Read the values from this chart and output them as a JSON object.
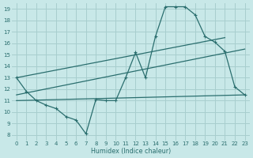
{
  "background_color": "#c8e8e8",
  "grid_color": "#a8cece",
  "line_color": "#2a6e6e",
  "xlabel": "Humidex (Indice chaleur)",
  "xlim": [
    -0.5,
    23.5
  ],
  "ylim": [
    7.5,
    19.5
  ],
  "xticks": [
    0,
    1,
    2,
    3,
    4,
    5,
    6,
    7,
    8,
    9,
    10,
    11,
    12,
    13,
    14,
    15,
    16,
    17,
    18,
    19,
    20,
    21,
    22,
    23
  ],
  "yticks": [
    8,
    9,
    10,
    11,
    12,
    13,
    14,
    15,
    16,
    17,
    18,
    19
  ],
  "main_x": [
    0,
    1,
    2,
    3,
    4,
    5,
    6,
    7,
    8,
    9,
    10,
    11,
    12,
    13,
    14,
    15,
    16,
    17,
    18,
    19,
    20,
    21,
    22,
    23
  ],
  "main_y": [
    13.0,
    11.8,
    11.0,
    10.6,
    10.3,
    9.6,
    9.3,
    8.1,
    11.1,
    11.0,
    11.0,
    13.0,
    15.2,
    13.0,
    16.6,
    19.2,
    19.2,
    19.2,
    18.5,
    16.6,
    16.1,
    15.3,
    12.2,
    11.5
  ],
  "line1_x": [
    0,
    21
  ],
  "line1_y": [
    13.0,
    16.5
  ],
  "line2_x": [
    0,
    23
  ],
  "line2_y": [
    11.5,
    15.5
  ],
  "line3_x": [
    0,
    23
  ],
  "line3_y": [
    11.0,
    11.5
  ]
}
